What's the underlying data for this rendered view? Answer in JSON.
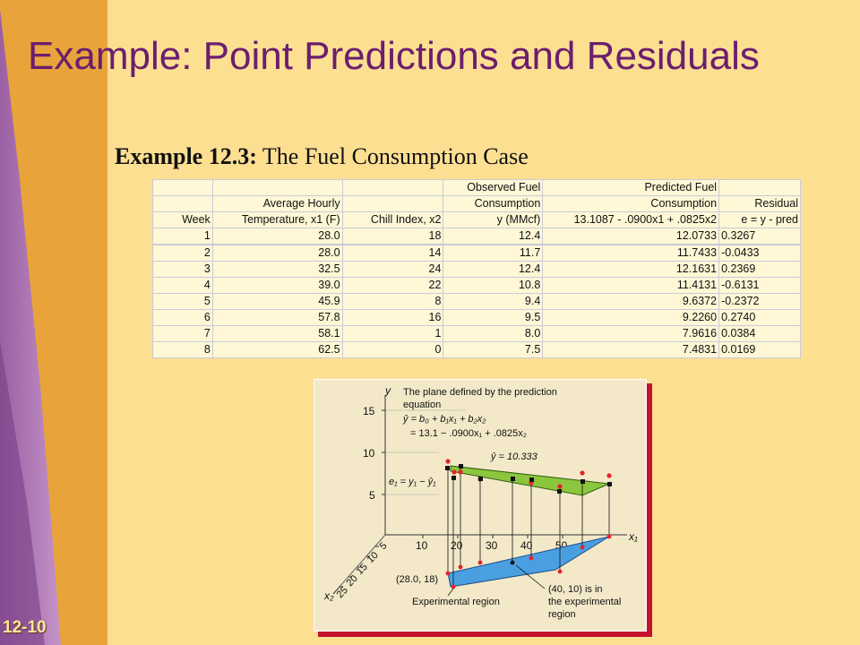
{
  "slide": {
    "title": "Example:  Point Predictions and Residuals",
    "subtitle_bold": "Example 12.3:",
    "subtitle_text": "The Fuel Consumption Case",
    "page_number": "12-10"
  },
  "table": {
    "header_rows": [
      [
        "",
        "",
        "",
        "Observed Fuel",
        "Predicted Fuel",
        ""
      ],
      [
        "",
        "Average Hourly",
        "",
        "Consumption",
        "Consumption",
        "Residual"
      ],
      [
        "Week",
        "Temperature, x1 (F)",
        "Chill Index, x2",
        "y (MMcf)",
        "13.1087 - .0900x1 + .0825x2",
        "e = y - pred"
      ]
    ],
    "rows": [
      [
        "1",
        "28.0",
        "18",
        "12.4",
        "12.0733",
        "0.3267"
      ],
      [
        "2",
        "28.0",
        "14",
        "11.7",
        "11.7433",
        "-0.0433"
      ],
      [
        "3",
        "32.5",
        "24",
        "12.4",
        "12.1631",
        "0.2369"
      ],
      [
        "4",
        "39.0",
        "22",
        "10.8",
        "11.4131",
        "-0.6131"
      ],
      [
        "5",
        "45.9",
        "8",
        "9.4",
        "9.6372",
        "-0.2372"
      ],
      [
        "6",
        "57.8",
        "16",
        "9.5",
        "9.2260",
        "0.2740"
      ],
      [
        "7",
        "58.1",
        "1",
        "8.0",
        "7.9616",
        "0.0384"
      ],
      [
        "8",
        "62.5",
        "0",
        "7.5",
        "7.4831",
        "0.0169"
      ]
    ]
  },
  "figure": {
    "plane_caption_1": "The plane defined by the prediction",
    "plane_caption_2": "equation",
    "equation_1": "ŷ = b₀ + b₁x₁ + b₂x₂",
    "equation_2": "= 13.1 − .0900x₁ + .0825x₂",
    "yhat_label": "ŷ = 10.333",
    "residual_label": "e₁ = y₁ − ŷ₁",
    "point_label_1": "(28.0, 18)",
    "point_label_2a": "(40, 10) is in",
    "point_label_2b": "the experimental",
    "point_label_2c": "region",
    "region_label": "Experimental region",
    "y_axis_label": "y",
    "x1_axis_label": "x₁",
    "x2_axis_label": "x₂",
    "y_ticks": [
      "15",
      "10",
      "5"
    ],
    "x1_ticks": [
      "10",
      "20",
      "30",
      "40",
      "50"
    ],
    "x2_ticks": [
      "5",
      "10",
      "15",
      "20",
      "25"
    ]
  },
  "colors": {
    "title": "#6B1E6E",
    "background": "#FDDF92",
    "stripe": "#E8A43A",
    "plane_green": "#8CC63F",
    "region_blue": "#4A9FE0",
    "point_red": "#E8212B",
    "frame_red": "#C4122F"
  }
}
